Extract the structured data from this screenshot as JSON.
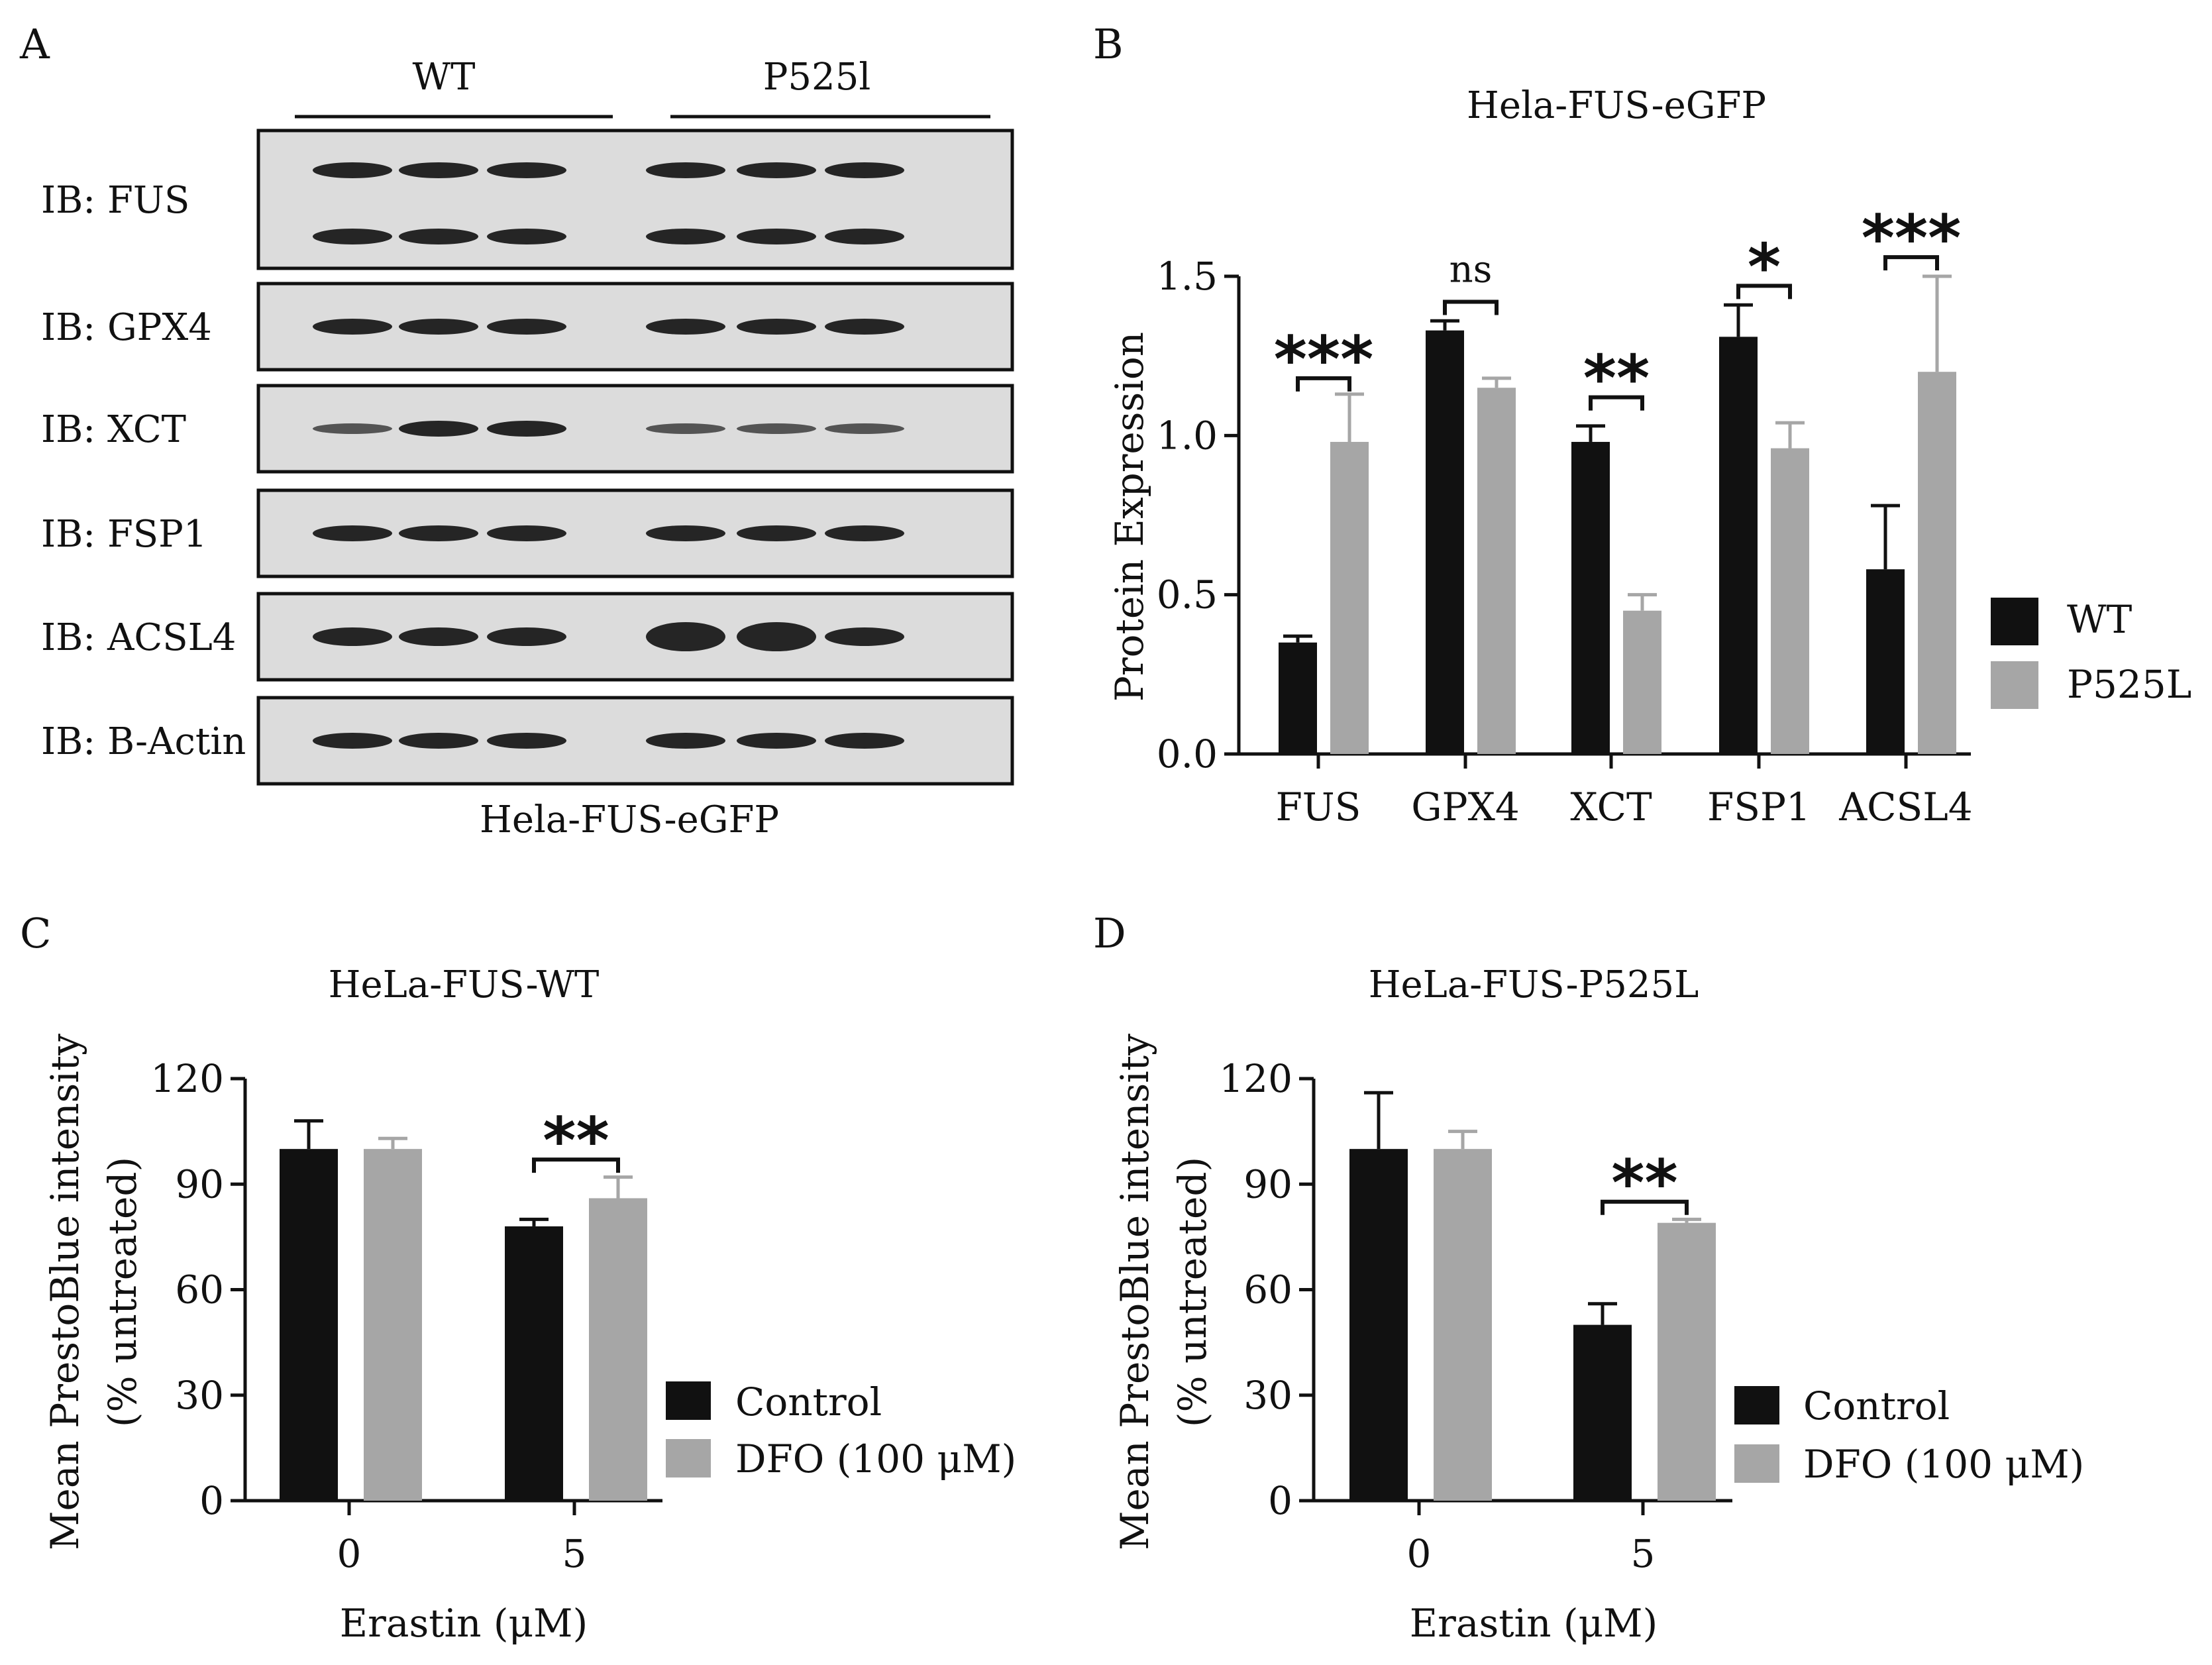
{
  "colors": {
    "wt": "#111111",
    "p525l": "#a6a6a6",
    "blot_bg": "#dcdcdc",
    "band": "#1a1a1a"
  },
  "panelA": {
    "letter": "A",
    "groups": [
      "WT",
      "P525l"
    ],
    "rows": [
      "IB: FUS",
      "IB: GPX4",
      "IB: XCT",
      "IB: FSP1",
      "IB: ACSL4",
      "IB: B-Actin"
    ],
    "caption": "Hela-FUS-eGFP"
  },
  "panelB": {
    "letter": "B",
    "legend": [
      "WT",
      "P525L"
    ],
    "significance": [
      "***",
      "ns",
      "**",
      "*",
      "***"
    ]
  },
  "panelC": {
    "letter": "C",
    "legend": [
      "Control",
      "DFO (100 μM)"
    ],
    "significance": [
      "**"
    ]
  },
  "panelD": {
    "letter": "D",
    "legend": [
      "Control",
      "DFO (100 μM)"
    ],
    "significance": [
      "**"
    ]
  },
  "chart_data": [
    {
      "type": "bar",
      "title": "Hela-FUS-eGFP",
      "xlabel": "",
      "ylabel": "Protein Expression",
      "categories": [
        "FUS",
        "GPX4",
        "XCT",
        "FSP1",
        "ACSL4"
      ],
      "series": [
        {
          "name": "WT",
          "values": [
            0.35,
            1.33,
            0.98,
            1.31,
            0.58
          ],
          "errors": [
            0.02,
            0.03,
            0.05,
            0.1,
            0.2
          ]
        },
        {
          "name": "P525L",
          "values": [
            0.98,
            1.15,
            0.45,
            0.96,
            1.2
          ],
          "errors": [
            0.15,
            0.03,
            0.05,
            0.08,
            0.3
          ]
        }
      ],
      "ylim": [
        0,
        1.5
      ],
      "yticks": [
        "0.0",
        "0.5",
        "1.0",
        "1.5"
      ],
      "grid": false,
      "legend_position": "right"
    },
    {
      "type": "bar",
      "title": "HeLa-FUS-WT",
      "xlabel": "Erastin (μM)",
      "ylabel": "Mean PrestoBlue intensity",
      "ylabel2": "(% untreated)",
      "categories": [
        "0",
        "5"
      ],
      "series": [
        {
          "name": "Control",
          "values": [
            100,
            78
          ],
          "errors": [
            8,
            2
          ]
        },
        {
          "name": "DFO (100 μM)",
          "values": [
            100,
            86
          ],
          "errors": [
            3,
            6
          ]
        }
      ],
      "ylim": [
        0,
        120
      ],
      "yticks": [
        "0",
        "30",
        "60",
        "90",
        "120"
      ],
      "grid": false,
      "legend_position": "right"
    },
    {
      "type": "bar",
      "title": "HeLa-FUS-P525L",
      "xlabel": "Erastin (μM)",
      "ylabel": "Mean PrestoBlue intensity",
      "ylabel2": "(% untreated)",
      "categories": [
        "0",
        "5"
      ],
      "series": [
        {
          "name": "Control",
          "values": [
            100,
            50
          ],
          "errors": [
            16,
            6
          ]
        },
        {
          "name": "DFO (100 μM)",
          "values": [
            100,
            79
          ],
          "errors": [
            5,
            1
          ]
        }
      ],
      "ylim": [
        0,
        120
      ],
      "yticks": [
        "0",
        "30",
        "60",
        "90",
        "120"
      ],
      "grid": false,
      "legend_position": "right"
    }
  ]
}
